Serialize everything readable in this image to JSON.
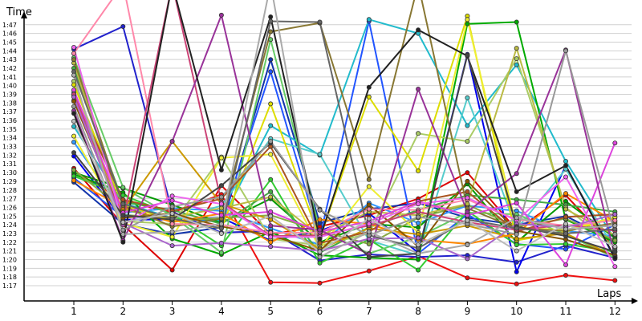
{
  "chart_data": {
    "type": "line",
    "title": "",
    "xlabel": "Laps",
    "ylabel": "Time",
    "grid": true,
    "legend": "none",
    "x": [
      1,
      2,
      3,
      4,
      5,
      6,
      7,
      8,
      9,
      10,
      11,
      12
    ],
    "ylim": [
      75.5,
      108.5
    ],
    "y_tick_labels": [
      "1:17",
      "1:18",
      "1:19",
      "1:20",
      "1:21",
      "1:22",
      "1:23",
      "1:24",
      "1:25",
      "1:26",
      "1:27",
      "1:28",
      "1:29",
      "1:30",
      "1:31",
      "1:32",
      "1:33",
      "1:34",
      "1:35",
      "1:36",
      "1:37",
      "1:38",
      "1:39",
      "1:40",
      "1:41",
      "1:42",
      "1:43",
      "1:44",
      "1:45",
      "1:46",
      "1:47"
    ],
    "y_tick_values": [
      77,
      78,
      79,
      80,
      81,
      82,
      83,
      84,
      85,
      86,
      87,
      88,
      89,
      90,
      91,
      92,
      93,
      94,
      95,
      96,
      97,
      98,
      99,
      100,
      101,
      102,
      103,
      104,
      105,
      106,
      107
    ],
    "series": [
      {
        "color": "#ee1111",
        "values": [
          90.2,
          86.8,
          85.4,
          87.5,
          77.4,
          77.3,
          78.7,
          80.4,
          77.9,
          77.2,
          78.2,
          77.6
        ]
      },
      {
        "color": "#dd0000",
        "values": [
          90.5,
          84.0,
          78.8,
          88.5,
          82.9,
          83.8,
          85.1,
          87.0,
          90.0,
          83.4,
          87.4,
          81.4
        ]
      },
      {
        "color": "#2222cc",
        "values": [
          104.2,
          106.8,
          85.5,
          83.1,
          83.3,
          79.9,
          80.6,
          80.3,
          80.5,
          79.7,
          81.6,
          80.2
        ]
      },
      {
        "color": "#0000ee",
        "values": [
          91.9,
          84.6,
          84.6,
          84.8,
          82.2,
          83.3,
          85.3,
          80.8,
          103.6,
          78.6,
          90.8,
          80.1
        ]
      },
      {
        "color": "#1133aa",
        "values": [
          88.9,
          84.1,
          82.9,
          83.7,
          103.0,
          84.2,
          85.8,
          86.5,
          84.8,
          84.0,
          85.0,
          82.2
        ]
      },
      {
        "color": "#2255ff",
        "values": [
          89.4,
          84.9,
          84.9,
          84.3,
          101.6,
          82.5,
          107.4,
          80.7,
          85.2,
          81.8,
          81.2,
          84.0
        ]
      },
      {
        "color": "#3399ff",
        "values": [
          93.5,
          85.4,
          85.9,
          85.6,
          83.6,
          81.7,
          86.5,
          84.2,
          86.2,
          85.6,
          83.3,
          82.7
        ]
      },
      {
        "color": "#22bbcc",
        "values": [
          95.3,
          86.5,
          84.8,
          84.5,
          95.4,
          92.0,
          107.6,
          106.0,
          95.4,
          102.4,
          91.3,
          82.3
        ]
      },
      {
        "color": "#55cccc",
        "values": [
          99.2,
          85.2,
          84.6,
          86.2,
          93.9,
          92.1,
          82.2,
          80.5,
          98.6,
          83.5,
          90.4,
          81.2
        ]
      },
      {
        "color": "#00aa00",
        "values": [
          89.8,
          87.7,
          82.4,
          80.6,
          83.2,
          80.5,
          80.2,
          80.0,
          107.1,
          107.3,
          84.6,
          82.0
        ]
      },
      {
        "color": "#009900",
        "values": [
          90.0,
          88.2,
          86.3,
          84.2,
          87.0,
          82.0,
          84.1,
          83.7,
          88.7,
          82.0,
          86.7,
          82.5
        ]
      },
      {
        "color": "#33cc33",
        "values": [
          89.6,
          87.4,
          85.2,
          81.6,
          89.2,
          79.6,
          82.3,
          78.8,
          85.6,
          81.7,
          81.8,
          80.9
        ]
      },
      {
        "color": "#44aa44",
        "values": [
          102.0,
          86.6,
          85.7,
          84.1,
          87.8,
          80.8,
          83.7,
          85.7,
          87.4,
          86.9,
          86.3,
          85.5
        ]
      },
      {
        "color": "#66cc66",
        "values": [
          103.2,
          88.3,
          85.0,
          80.8,
          105.3,
          83.4,
          80.7,
          82.6,
          85.4,
          85.2,
          82.9,
          80.2
        ]
      },
      {
        "color": "#88aa44",
        "values": [
          90.3,
          85.8,
          84.4,
          84.8,
          85.1,
          83.3,
          81.8,
          84.8,
          86.3,
          83.8,
          84.7,
          82.2
        ]
      },
      {
        "color": "#aacc66",
        "values": [
          100.5,
          84.4,
          84.1,
          91.8,
          82.4,
          81.6,
          83.0,
          94.5,
          93.6,
          103.1,
          86.0,
          81.4
        ]
      },
      {
        "color": "#dddd00",
        "values": [
          100.1,
          86.3,
          84.5,
          83.6,
          97.9,
          82.4,
          98.7,
          90.2,
          108.0,
          82.2,
          83.2,
          84.8
        ]
      },
      {
        "color": "#eeee33",
        "values": [
          94.2,
          84.2,
          82.6,
          91.7,
          92.1,
          81.3,
          88.4,
          83.1,
          107.6,
          83.7,
          83.4,
          84.9
        ]
      },
      {
        "color": "#bbbb44",
        "values": [
          102.6,
          85.1,
          84.9,
          85.9,
          87.2,
          82.7,
          85.5,
          85.1,
          86.4,
          104.3,
          85.8,
          82.8
        ]
      },
      {
        "color": "#cc9900",
        "values": [
          98.3,
          85.7,
          93.6,
          86.4,
          84.6,
          81.2,
          83.6,
          82.9,
          83.9,
          82.4,
          83.0,
          80.4
        ]
      },
      {
        "color": "#ff8800",
        "values": [
          89.1,
          86.0,
          84.3,
          85.3,
          82.0,
          84.6,
          84.1,
          82.3,
          81.8,
          83.0,
          87.6,
          84.4
        ]
      },
      {
        "color": "#aa5522",
        "values": [
          98.9,
          86.9,
          85.6,
          87.0,
          93.0,
          81.9,
          83.2,
          86.7,
          87.8,
          83.2,
          84.9,
          85.2
        ]
      },
      {
        "color": "#885500",
        "values": [
          98.2,
          84.8,
          85.3,
          83.8,
          82.8,
          81.0,
          86.3,
          81.5,
          89.0,
          83.3,
          82.3,
          80.5
        ]
      },
      {
        "color": "#887733",
        "values": [
          103.0,
          86.2,
          83.8,
          84.7,
          106.2,
          107.2,
          89.2,
          114.0,
          85.9,
          83.6,
          83.3,
          84.2
        ]
      },
      {
        "color": "#ff88aa",
        "values": [
          103.7,
          116.0,
          84.1,
          84.0,
          83.1,
          83.1,
          85.8,
          85.7,
          86.9,
          84.6,
          83.9,
          84.5
        ]
      },
      {
        "color": "#cc4477",
        "values": [
          99.0,
          84.4,
          114.0,
          86.6,
          82.7,
          82.8,
          83.9,
          85.5,
          84.3,
          83.4,
          84.0,
          83.3
        ]
      },
      {
        "color": "#dd44dd",
        "values": [
          99.5,
          85.4,
          86.8,
          85.1,
          85.5,
          83.2,
          84.4,
          86.7,
          85.1,
          86.5,
          79.4,
          93.4
        ]
      },
      {
        "color": "#ee66ee",
        "values": [
          104.4,
          84.0,
          87.3,
          86.4,
          82.6,
          82.6,
          84.1,
          86.4,
          87.1,
          84.5,
          89.5,
          79.2
        ]
      },
      {
        "color": "#993399",
        "values": [
          97.1,
          82.2,
          93.6,
          108.1,
          83.9,
          83.4,
          80.6,
          99.6,
          85.5,
          89.9,
          104.1,
          80.3
        ]
      },
      {
        "color": "#aa66cc",
        "values": [
          98.7,
          84.2,
          81.6,
          81.9,
          81.5,
          81.0,
          82.4,
          82.5,
          80.1,
          84.1,
          83.7,
          85.2
        ]
      },
      {
        "color": "#222222",
        "values": [
          96.8,
          82.0,
          114.0,
          90.3,
          107.9,
          82.4,
          99.8,
          106.4,
          103.4,
          87.8,
          90.8,
          80.2
        ]
      },
      {
        "color": "#444444",
        "values": [
          92.3,
          85.1,
          84.6,
          88.5,
          93.4,
          85.8,
          80.3,
          80.7,
          103.5,
          83.8,
          82.7,
          80.9
        ]
      },
      {
        "color": "#666666",
        "values": [
          101.6,
          86.4,
          84.7,
          83.6,
          107.4,
          107.3,
          82.8,
          81.3,
          84.6,
          83.6,
          83.0,
          83.5
        ]
      },
      {
        "color": "#999999",
        "values": [
          97.6,
          83.4,
          86.1,
          87.2,
          93.6,
          85.7,
          82.8,
          84.9,
          84.1,
          82.9,
          104.0,
          82.9
        ]
      },
      {
        "color": "#aaaaaa",
        "values": [
          101.2,
          82.9,
          83.2,
          84.1,
          114.0,
          80.3,
          83.2,
          80.7,
          81.7,
          84.8,
          83.5,
          83.9
        ]
      },
      {
        "color": "#bbbbbb",
        "values": [
          95.9,
          84.3,
          85.3,
          83.0,
          85.0,
          80.9,
          84.7,
          81.7,
          84.5,
          81.0,
          84.1,
          81.5
        ]
      }
    ]
  }
}
